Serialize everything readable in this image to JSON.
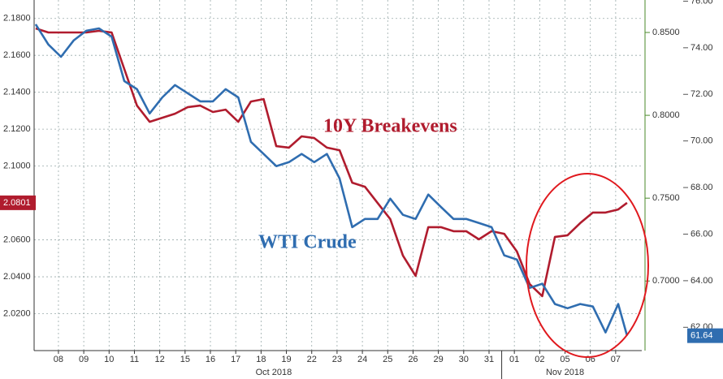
{
  "chart_data": {
    "type": "line",
    "x": [
      -0.9,
      -0.4,
      0.1,
      0.6,
      1.1,
      1.6,
      2.1,
      2.6,
      3.1,
      3.6,
      4.1,
      4.6,
      5.1,
      5.6,
      6.1,
      6.6,
      7.1,
      7.6,
      8.1,
      8.6,
      9.1,
      9.6,
      10.1,
      10.6,
      11.1,
      11.6,
      12.1,
      12.6,
      13.1,
      13.6,
      14.1,
      14.6,
      15.1,
      15.6,
      16.1,
      16.6,
      17.1,
      17.6,
      18.1,
      18.6,
      19.1,
      19.6,
      20.1,
      20.6,
      21.1,
      21.6,
      22.1,
      22.45
    ],
    "series": [
      {
        "name": "10Y Breakevens",
        "color": "#b01c2e",
        "axis": "y",
        "last_value": 2.0801,
        "values": [
          2.1746,
          2.1724,
          2.1724,
          2.1724,
          2.1724,
          2.1733,
          2.1724,
          2.1526,
          2.1328,
          2.124,
          2.1262,
          2.1284,
          2.1319,
          2.1328,
          2.1293,
          2.1306,
          2.124,
          2.135,
          2.1363,
          2.1108,
          2.11,
          2.1161,
          2.1152,
          2.11,
          2.1086,
          2.091,
          2.0888,
          2.08,
          2.0713,
          2.0515,
          2.0405,
          2.0669,
          2.0669,
          2.0647,
          2.0647,
          2.0603,
          2.0647,
          2.0633,
          2.0537,
          2.0361,
          2.0295,
          2.0616,
          2.0625,
          2.0691,
          2.0748,
          2.0748,
          2.0765,
          2.0801
        ]
      },
      {
        "name": "WTI Crude",
        "color": "#2f6db0",
        "axis": "y2",
        "last_value": 61.64,
        "values": [
          75.01,
          74.14,
          73.61,
          74.31,
          74.73,
          74.83,
          74.48,
          72.57,
          72.22,
          71.18,
          71.87,
          72.4,
          72.05,
          71.7,
          71.7,
          72.22,
          71.87,
          69.96,
          69.44,
          68.92,
          69.09,
          69.44,
          69.09,
          69.44,
          68.39,
          66.3,
          66.65,
          66.65,
          67.52,
          66.83,
          66.65,
          67.7,
          67.17,
          66.65,
          66.65,
          66.48,
          66.3,
          65.09,
          64.91,
          63.69,
          63.87,
          63.0,
          62.82,
          63.0,
          62.89,
          61.78,
          63.0,
          61.64
        ]
      }
    ],
    "xlim": [
      -0.96,
      23.03
    ],
    "xticks": [
      {
        "value": 0,
        "label": "08"
      },
      {
        "value": 1,
        "label": "09"
      },
      {
        "value": 2,
        "label": "10"
      },
      {
        "value": 3,
        "label": "11"
      },
      {
        "value": 4,
        "label": "12"
      },
      {
        "value": 5,
        "label": "15"
      },
      {
        "value": 6,
        "label": "16"
      },
      {
        "value": 7,
        "label": "17"
      },
      {
        "value": 8,
        "label": "18"
      },
      {
        "value": 9,
        "label": "19"
      },
      {
        "value": 10,
        "label": "22"
      },
      {
        "value": 11,
        "label": "23"
      },
      {
        "value": 12,
        "label": "24"
      },
      {
        "value": 13,
        "label": "25"
      },
      {
        "value": 14,
        "label": "26"
      },
      {
        "value": 15,
        "label": "29"
      },
      {
        "value": 16,
        "label": "30"
      },
      {
        "value": 17,
        "label": "31"
      },
      {
        "value": 18,
        "label": "01"
      },
      {
        "value": 19,
        "label": "02"
      },
      {
        "value": 20,
        "label": "05"
      },
      {
        "value": 21,
        "label": "06"
      },
      {
        "value": 22,
        "label": "07"
      }
    ],
    "month_labels": [
      "Oct 2018",
      "Nov 2018"
    ],
    "ylim": [
      2.0,
      2.19
    ],
    "yticks": [
      {
        "value": 2.18,
        "label": "2.1800"
      },
      {
        "value": 2.16,
        "label": "2.1600"
      },
      {
        "value": 2.14,
        "label": "2.1400"
      },
      {
        "value": 2.12,
        "label": "2.1200"
      },
      {
        "value": 2.1,
        "label": "2.1000"
      },
      {
        "value": 2.06,
        "label": "2.0600"
      },
      {
        "value": 2.04,
        "label": "2.0400"
      },
      {
        "value": 2.02,
        "label": "2.0200"
      }
    ],
    "y2lim": [
      61.0,
      76.05
    ],
    "y2ticks": [
      {
        "value": 76,
        "label": "76.00"
      },
      {
        "value": 74,
        "label": "74.00"
      },
      {
        "value": 72,
        "label": "72.00"
      },
      {
        "value": 70,
        "label": "70.00"
      },
      {
        "value": 68,
        "label": "68.00"
      },
      {
        "value": 66,
        "label": "66.00"
      },
      {
        "value": 64,
        "label": "64.00"
      },
      {
        "value": 62,
        "label": "62.00"
      }
    ],
    "y3lim": [
      0.658,
      0.8696
    ],
    "y3ticks": [
      {
        "value": 0.85,
        "label": "0.8500"
      },
      {
        "value": 0.8,
        "label": "0.8000"
      },
      {
        "value": 0.75,
        "label": "0.7500"
      },
      {
        "value": 0.7,
        "label": "0.7000"
      }
    ],
    "y3color": "#4a8a2a",
    "grid": true
  }
}
